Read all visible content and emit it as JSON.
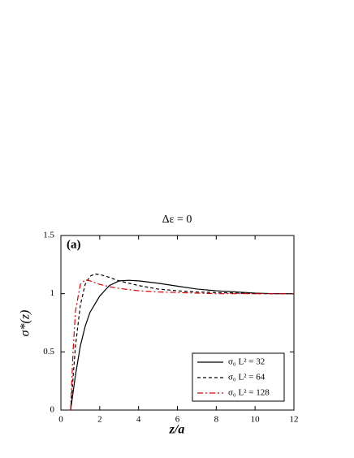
{
  "chart_data": {
    "type": "line",
    "title": "Δε = 0",
    "annotation": "(a)",
    "xlabel": "z/a",
    "ylabel": "σ*(z)",
    "xlim": [
      0,
      12
    ],
    "xticks": [
      0,
      2,
      4,
      6,
      8,
      10,
      12
    ],
    "ylim": [
      0,
      1.5
    ],
    "yticks": [
      0,
      0.5,
      1,
      1.5
    ],
    "legend": "lower right",
    "series": [
      {
        "name": "σ₀ L² = 32",
        "color": "#000000",
        "dash": "solid",
        "x": [
          0.5,
          0.75,
          1,
          1.25,
          1.5,
          2,
          2.5,
          3,
          3.5,
          4,
          5,
          6,
          7,
          8,
          9,
          10,
          11,
          12
        ],
        "values": [
          0,
          0.3,
          0.55,
          0.72,
          0.84,
          0.98,
          1.07,
          1.11,
          1.115,
          1.11,
          1.09,
          1.065,
          1.04,
          1.025,
          1.015,
          1.005,
          1.0,
          1.0
        ]
      },
      {
        "name": "σ₀ L² = 64",
        "color": "#000000",
        "dash": "dashed",
        "x": [
          0.5,
          0.75,
          1,
          1.25,
          1.5,
          1.75,
          2,
          2.5,
          3,
          4,
          5,
          6,
          7,
          8,
          10,
          12
        ],
        "values": [
          0,
          0.55,
          0.9,
          1.08,
          1.15,
          1.17,
          1.165,
          1.14,
          1.11,
          1.07,
          1.04,
          1.025,
          1.015,
          1.01,
          1.0,
          1.0
        ]
      },
      {
        "name": "σ₀ L² = 128",
        "color": "#e00000",
        "dash": "dashdot",
        "x": [
          0.5,
          0.625,
          0.75,
          1,
          1.25,
          1.5,
          2,
          2.5,
          3,
          4,
          5,
          6,
          8,
          10,
          12
        ],
        "values": [
          0,
          0.5,
          0.85,
          1.08,
          1.12,
          1.11,
          1.08,
          1.06,
          1.045,
          1.025,
          1.015,
          1.01,
          1.0,
          1.0,
          1.0
        ]
      }
    ]
  }
}
